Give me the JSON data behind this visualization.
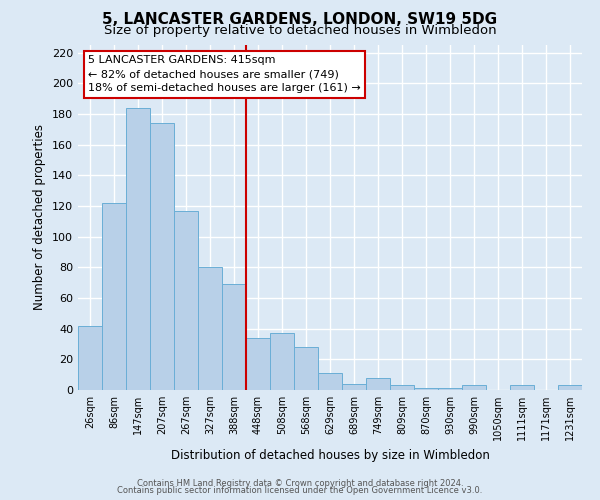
{
  "title": "5, LANCASTER GARDENS, LONDON, SW19 5DG",
  "subtitle": "Size of property relative to detached houses in Wimbledon",
  "xlabel": "Distribution of detached houses by size in Wimbledon",
  "ylabel": "Number of detached properties",
  "footer1": "Contains HM Land Registry data © Crown copyright and database right 2024.",
  "footer2": "Contains public sector information licensed under the Open Government Licence v3.0.",
  "bin_labels": [
    "26sqm",
    "86sqm",
    "147sqm",
    "207sqm",
    "267sqm",
    "327sqm",
    "388sqm",
    "448sqm",
    "508sqm",
    "568sqm",
    "629sqm",
    "689sqm",
    "749sqm",
    "809sqm",
    "870sqm",
    "930sqm",
    "990sqm",
    "1050sqm",
    "1111sqm",
    "1171sqm",
    "1231sqm"
  ],
  "bar_values": [
    42,
    122,
    184,
    174,
    117,
    80,
    69,
    34,
    37,
    28,
    11,
    4,
    8,
    3,
    1,
    1,
    3,
    0,
    3,
    0,
    3
  ],
  "bar_color": "#b8d0e8",
  "bar_edge_color": "#6aaed6",
  "vline_x": 6.5,
  "vline_color": "#cc0000",
  "annotation_title": "5 LANCASTER GARDENS: 415sqm",
  "annotation_line1": "← 82% of detached houses are smaller (749)",
  "annotation_line2": "18% of semi-detached houses are larger (161) →",
  "annotation_box_color": "#ffffff",
  "annotation_box_edge_color": "#cc0000",
  "ylim": [
    0,
    225
  ],
  "yticks": [
    0,
    20,
    40,
    60,
    80,
    100,
    120,
    140,
    160,
    180,
    200,
    220
  ],
  "background_color": "#dce9f5",
  "plot_bg_color": "#dce9f5",
  "grid_color": "#ffffff",
  "title_fontsize": 11,
  "subtitle_fontsize": 9.5
}
